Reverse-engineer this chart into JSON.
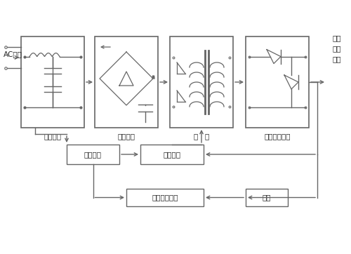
{
  "bg_color": "#ffffff",
  "line_color": "#666666",
  "text_color": "#222222",
  "labels": {
    "ac": "AC市电",
    "input_filter": "输入滤波",
    "rectifier": "整流滤波",
    "inverter_l": "逆",
    "inverter_r": "变",
    "output_filter": "输出整流滤波",
    "output_1": "输出",
    "output_2": "直流",
    "output_3": "滤波",
    "aux_power": "辅助电源",
    "control": "控制电路",
    "protection": "保护动作电路",
    "detect": "检测"
  }
}
